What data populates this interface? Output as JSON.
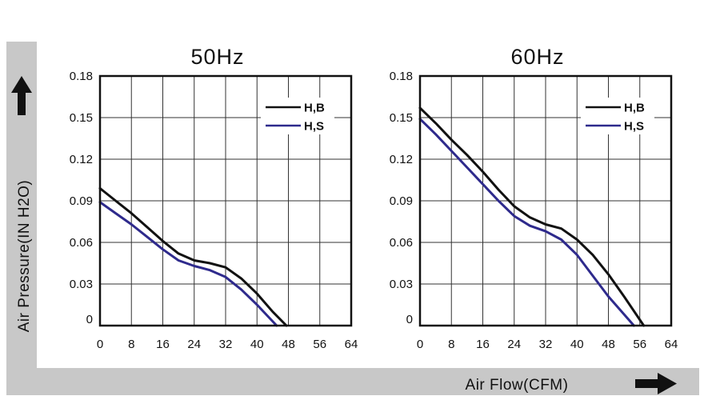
{
  "axes": {
    "ylabel": "Air Pressure(IN H2O)",
    "xlabel": "Air Flow(CFM)",
    "y_arrow_icon": "arrow-up-icon",
    "x_arrow_icon": "arrow-right-icon"
  },
  "colors": {
    "frame_gray": "#c8c8c8",
    "grid": "#333333",
    "series_hb": "#111111",
    "series_hs": "#2e2a8c"
  },
  "chart_data": [
    {
      "type": "line",
      "title": "50Hz",
      "xlim": [
        0,
        64
      ],
      "ylim": [
        0,
        0.18
      ],
      "xticks": [
        "0",
        "8",
        "16",
        "24",
        "32",
        "40",
        "48",
        "56",
        "64"
      ],
      "yticks": [
        "0",
        "0.03",
        "0.06",
        "0.09",
        "0.12",
        "0.15",
        "0.18"
      ],
      "grid": true,
      "legend_position": "top-right",
      "series": [
        {
          "name": "H,B",
          "x": [
            0,
            4,
            8,
            12,
            16,
            20,
            24,
            28,
            32,
            36,
            40,
            44,
            47.5
          ],
          "y": [
            0.099,
            0.09,
            0.081,
            0.071,
            0.061,
            0.052,
            0.047,
            0.045,
            0.042,
            0.034,
            0.023,
            0.01,
            0
          ]
        },
        {
          "name": "H,S",
          "x": [
            0,
            4,
            8,
            12,
            16,
            20,
            24,
            28,
            32,
            36,
            40,
            45
          ],
          "y": [
            0.089,
            0.081,
            0.073,
            0.064,
            0.055,
            0.047,
            0.043,
            0.04,
            0.035,
            0.026,
            0.015,
            0
          ]
        }
      ]
    },
    {
      "type": "line",
      "title": "60Hz",
      "xlim": [
        0,
        64
      ],
      "ylim": [
        0,
        0.18
      ],
      "xticks": [
        "0",
        "8",
        "16",
        "24",
        "32",
        "40",
        "48",
        "56",
        "64"
      ],
      "yticks": [
        "0",
        "0.03",
        "0.06",
        "0.09",
        "0.12",
        "0.15",
        "0.18"
      ],
      "grid": true,
      "legend_position": "top-right",
      "series": [
        {
          "name": "H,B",
          "x": [
            0,
            4,
            8,
            12,
            16,
            20,
            24,
            28,
            32,
            36,
            40,
            44,
            48,
            52,
            57
          ],
          "y": [
            0.157,
            0.146,
            0.134,
            0.123,
            0.111,
            0.098,
            0.086,
            0.078,
            0.073,
            0.07,
            0.062,
            0.051,
            0.037,
            0.021,
            0
          ]
        },
        {
          "name": "H,S",
          "x": [
            0,
            4,
            8,
            12,
            16,
            20,
            24,
            28,
            32,
            36,
            40,
            44,
            48,
            54.5
          ],
          "y": [
            0.149,
            0.138,
            0.126,
            0.114,
            0.102,
            0.09,
            0.079,
            0.072,
            0.068,
            0.062,
            0.051,
            0.036,
            0.021,
            0
          ]
        }
      ]
    }
  ]
}
